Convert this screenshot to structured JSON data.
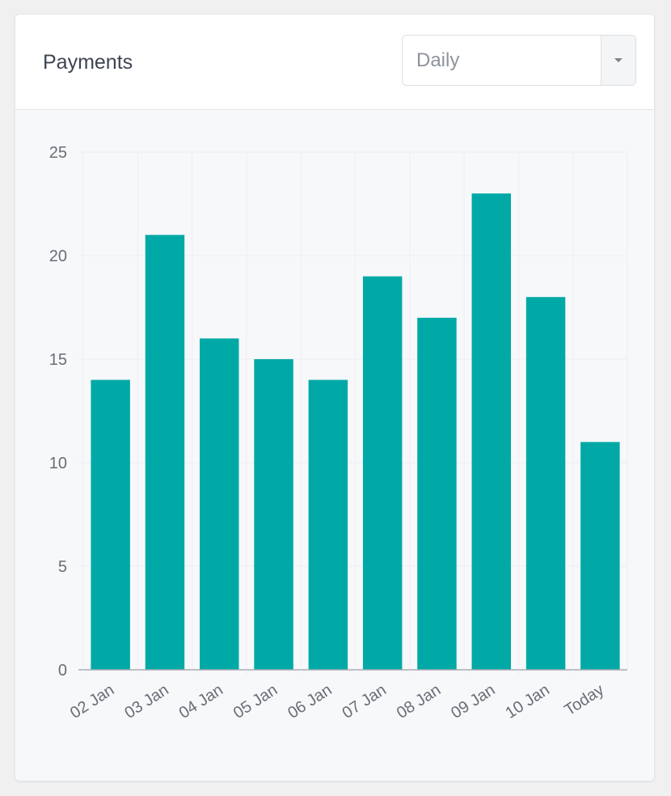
{
  "card": {
    "title": "Payments",
    "period_select": {
      "value": "Daily"
    }
  },
  "colors": {
    "bar": "#00a9a6",
    "grid": "#eceef1",
    "axis": "#a7abb1",
    "tick_text": "#686e76"
  },
  "icons": {
    "dropdown": "caret-down-icon"
  },
  "chart_data": {
    "type": "bar",
    "categories": [
      "02 Jan",
      "03 Jan",
      "04 Jan",
      "05 Jan",
      "06 Jan",
      "07 Jan",
      "08 Jan",
      "09 Jan",
      "10 Jan",
      "Today"
    ],
    "values": [
      14,
      21,
      16,
      15,
      14,
      19,
      17,
      23,
      18,
      11
    ],
    "ylim": [
      0,
      25
    ],
    "yticks": [
      0,
      5,
      10,
      15,
      20,
      25
    ],
    "grid": true,
    "legend": "none",
    "title": "",
    "xlabel": "",
    "ylabel": ""
  }
}
